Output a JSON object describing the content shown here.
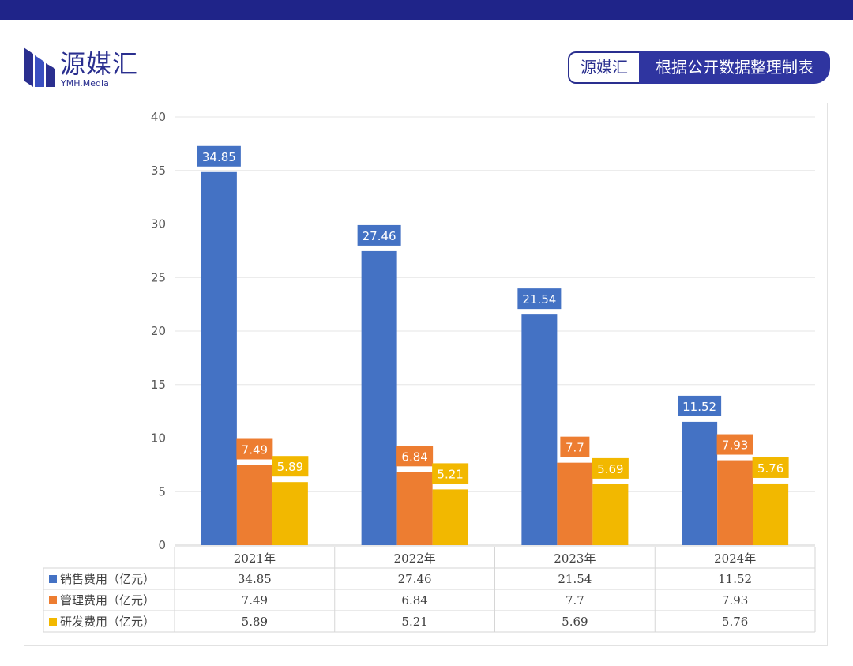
{
  "header": {
    "logo_name": "源媒汇",
    "logo_sub": "YMH.Media",
    "badge_left": "源媒汇",
    "badge_right": "根据公开数据整理制表"
  },
  "colors": {
    "topbar": "#1f2489",
    "brand": "#2a2f8f",
    "series": [
      "#4472c4",
      "#ed7d31",
      "#f2b800"
    ]
  },
  "chart_data": {
    "type": "bar",
    "categories": [
      "2021年",
      "2022年",
      "2023年",
      "2024年"
    ],
    "series": [
      {
        "name": "销售费用（亿元）",
        "values": [
          34.85,
          27.46,
          21.54,
          11.52
        ],
        "labels": [
          "34.85",
          "27.46",
          "21.54",
          "11.52"
        ]
      },
      {
        "name": "管理费用（亿元）",
        "values": [
          7.49,
          6.84,
          7.7,
          7.93
        ],
        "labels": [
          "7.49",
          "6.84",
          "7.7",
          "7.93"
        ]
      },
      {
        "name": "研发费用（亿元）",
        "values": [
          5.89,
          5.21,
          5.69,
          5.76
        ],
        "labels": [
          "5.89",
          "5.21",
          "5.69",
          "5.76"
        ]
      }
    ],
    "ylim": [
      0,
      40
    ],
    "yticks": [
      0,
      5,
      10,
      15,
      20,
      25,
      30,
      35,
      40
    ],
    "grid": true,
    "legend": "data-table-below"
  }
}
